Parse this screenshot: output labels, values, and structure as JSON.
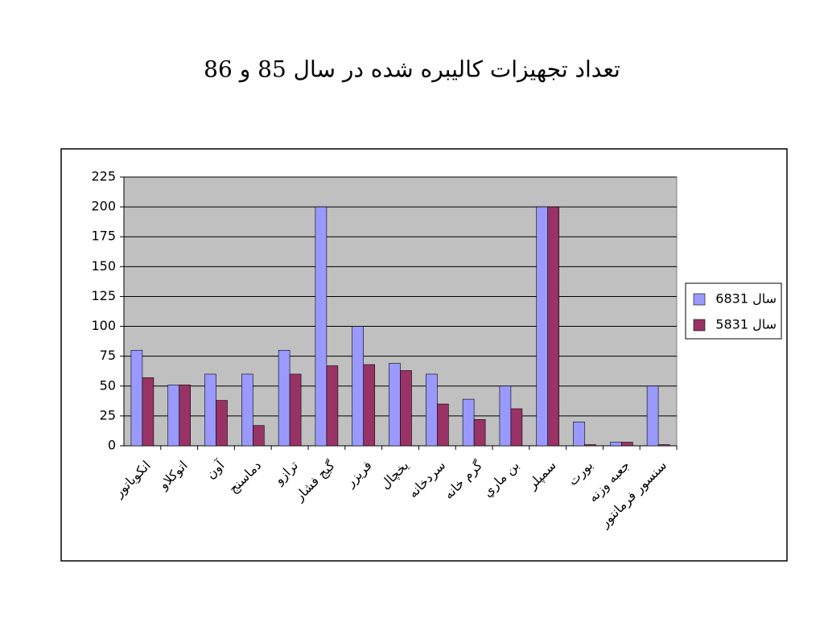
{
  "chart_data": {
    "type": "bar",
    "title": "تعداد تجهیزات کالیبره شده در سال 85 و 86",
    "categories": [
      "انکوباتور",
      "اتوکلاو",
      "آون",
      "دماسنج",
      "ترازو",
      "گیج فشار",
      "فریزر",
      "یخچال",
      "سردخانه",
      "گرم خانه",
      "بن ماري",
      "سمپلر",
      "بورت",
      "جعبه وزنه",
      "سنسور فرمانتور"
    ],
    "series": [
      {
        "name": "سال 6831",
        "color": "#9999ff",
        "values": [
          80,
          51,
          60,
          60,
          80,
          200,
          100,
          69,
          60,
          39,
          50,
          200,
          20,
          3,
          50
        ]
      },
      {
        "name": "سال 5831",
        "color": "#993366",
        "values": [
          57,
          51,
          38,
          17,
          60,
          67,
          68,
          63,
          35,
          22,
          31,
          200,
          1,
          3,
          1
        ]
      }
    ],
    "ylim": [
      0,
      225
    ],
    "yticks": [
      0,
      25,
      50,
      75,
      100,
      125,
      150,
      175,
      200,
      225
    ],
    "grid": true,
    "legend": "right"
  }
}
